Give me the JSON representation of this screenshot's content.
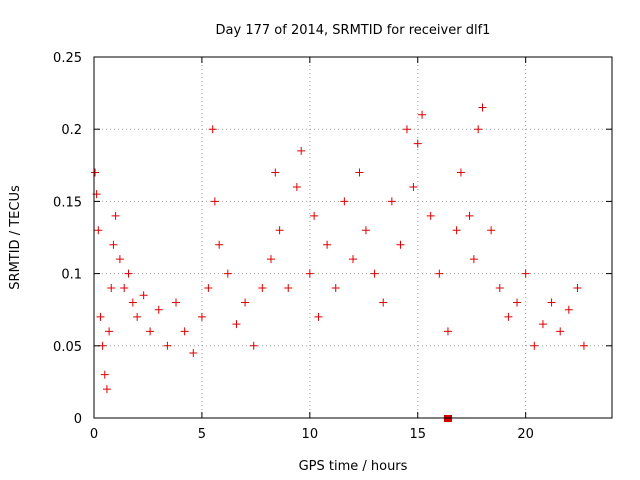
{
  "chart_data": {
    "type": "scatter",
    "title": "Day 177 of 2014, SRMTID for receiver dlf1",
    "xlabel": "GPS time / hours",
    "ylabel": "SRMTID / TECUs",
    "xlim": [
      0,
      24
    ],
    "ylim": [
      0,
      0.25
    ],
    "xticks": [
      "0",
      "5",
      "10",
      "15",
      "20"
    ],
    "yticks": [
      "0",
      "0.05",
      "0.1",
      "0.15",
      "0.2",
      "0.25"
    ],
    "grid": true,
    "series": [
      {
        "marker": "plus",
        "color": "#dd0000",
        "x": [
          0.05,
          0.12,
          0.2,
          0.3,
          0.4,
          0.5,
          0.6,
          0.7,
          0.8,
          0.9,
          1.0,
          1.2,
          1.4,
          1.6,
          1.8,
          2.0,
          2.3,
          2.6,
          3.0,
          3.4,
          3.8,
          4.2,
          4.6,
          5.0,
          5.3,
          5.5,
          5.6,
          5.8,
          6.2,
          6.6,
          7.0,
          7.4,
          7.8,
          8.2,
          8.4,
          8.6,
          9.0,
          9.4,
          9.6,
          10.0,
          10.2,
          10.4,
          10.8,
          11.2,
          11.6,
          12.0,
          12.3,
          12.6,
          13.0,
          13.4,
          13.8,
          14.2,
          14.5,
          14.8,
          15.0,
          15.2,
          15.6,
          16.0,
          16.4,
          16.8,
          17.0,
          17.4,
          17.6,
          17.8,
          18.0,
          18.4,
          18.8,
          19.2,
          19.6,
          20.0,
          20.4,
          20.8,
          21.2,
          21.6,
          22.0,
          22.4,
          22.7
        ],
        "y": [
          0.17,
          0.155,
          0.13,
          0.07,
          0.05,
          0.03,
          0.02,
          0.06,
          0.09,
          0.12,
          0.14,
          0.11,
          0.09,
          0.1,
          0.08,
          0.07,
          0.085,
          0.06,
          0.075,
          0.05,
          0.08,
          0.06,
          0.045,
          0.07,
          0.09,
          0.2,
          0.15,
          0.12,
          0.1,
          0.065,
          0.08,
          0.05,
          0.09,
          0.11,
          0.17,
          0.13,
          0.09,
          0.16,
          0.185,
          0.1,
          0.14,
          0.07,
          0.12,
          0.09,
          0.15,
          0.11,
          0.17,
          0.13,
          0.1,
          0.08,
          0.15,
          0.12,
          0.2,
          0.16,
          0.19,
          0.21,
          0.14,
          0.1,
          0.06,
          0.13,
          0.17,
          0.14,
          0.11,
          0.2,
          0.215,
          0.13,
          0.09,
          0.07,
          0.08,
          0.1,
          0.05,
          0.065,
          0.08,
          0.06,
          0.075,
          0.09,
          0.05
        ]
      }
    ],
    "markers": [
      {
        "shape": "square",
        "x": 16.4,
        "y": 0,
        "color": "#cc0000"
      }
    ]
  }
}
